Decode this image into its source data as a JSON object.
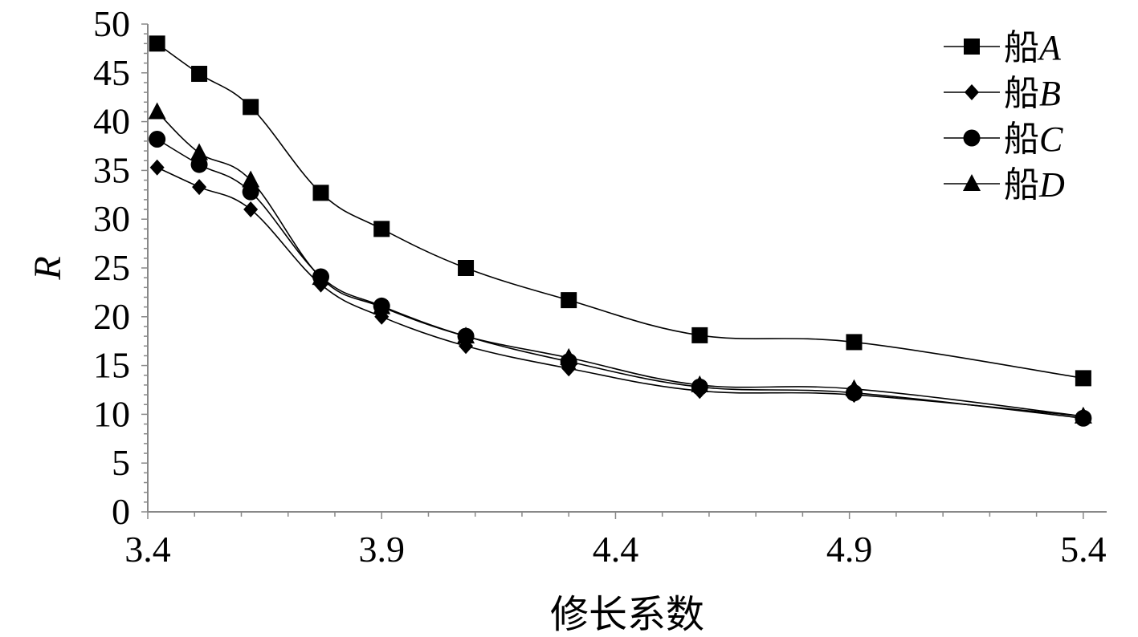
{
  "chart_data": {
    "type": "line",
    "xlabel": "修长系数",
    "ylabel": "R",
    "xlim": [
      3.4,
      5.45
    ],
    "ylim": [
      0,
      50
    ],
    "x_ticks": [
      "3.4",
      "3.9",
      "4.4",
      "4.9",
      "5.4"
    ],
    "y_ticks": [
      "0",
      "5",
      "10",
      "15",
      "20",
      "25",
      "30",
      "35",
      "40",
      "45",
      "50"
    ],
    "grid": false,
    "legend_position": "top-right",
    "x": [
      3.42,
      3.51,
      3.62,
      3.77,
      3.9,
      4.08,
      4.3,
      4.58,
      4.91,
      5.4
    ],
    "series": [
      {
        "name": "船",
        "name_suffix": "A",
        "marker": "square",
        "values": [
          48.0,
          44.9,
          41.5,
          32.7,
          29.0,
          25.0,
          21.7,
          18.1,
          17.4,
          13.7
        ]
      },
      {
        "name": "船",
        "name_suffix": "B",
        "marker": "diamond",
        "values": [
          35.3,
          33.3,
          31.0,
          23.3,
          20.0,
          17.0,
          14.7,
          12.4,
          12.0,
          9.8
        ]
      },
      {
        "name": "船",
        "name_suffix": "C",
        "marker": "circle",
        "values": [
          38.2,
          35.6,
          32.8,
          24.1,
          21.1,
          18.0,
          15.4,
          12.8,
          12.2,
          9.6
        ]
      },
      {
        "name": "船",
        "name_suffix": "D",
        "marker": "triangle",
        "values": [
          41.0,
          36.8,
          34.0,
          24.0,
          21.0,
          18.0,
          15.8,
          13.0,
          12.6,
          9.8
        ]
      }
    ]
  }
}
